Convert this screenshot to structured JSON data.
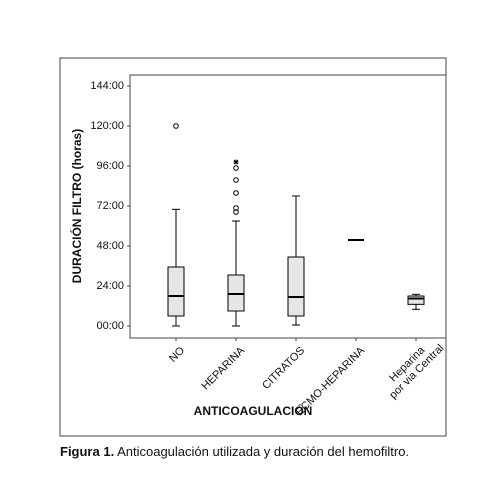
{
  "chart_data": {
    "type": "box",
    "title": null,
    "ylabel": "DURACIÓN FILTRO (horas)",
    "xlabel": "ANTICOAGULACIÓN",
    "caption_label": "Figura 1.",
    "caption_text": "Anticoagulación utilizada y duración del hemofiltro.",
    "categories": [
      "NO",
      "HEPARINA",
      "CITRATOS",
      "ECMO-HEPARINA",
      "Heparina por via Central"
    ],
    "boxes": [
      {
        "min": 0,
        "q1": 6,
        "median": 18,
        "q3": 35.4,
        "max": 70,
        "outliers": [
          120
        ],
        "extremes": []
      },
      {
        "min": 0,
        "q1": 9,
        "median": 19.2,
        "q3": 30.6,
        "max": 63,
        "outliers": [
          68.4,
          70.8,
          79.8,
          87.6,
          94.8
        ],
        "extremes": [
          98.4
        ]
      },
      {
        "min": 0.6,
        "q1": 6,
        "median": 17.4,
        "q3": 41.4,
        "max": 78,
        "outliers": [],
        "extremes": []
      },
      {
        "min": 51.6,
        "q1": 51.6,
        "median": 51.6,
        "q3": 51.6,
        "max": 51.6,
        "outliers": [],
        "extremes": []
      },
      {
        "min": 10,
        "q1": 13,
        "median": 16.5,
        "q3": 18,
        "max": 19,
        "outliers": [],
        "extremes": []
      }
    ],
    "color": "#e6e6e6",
    "ylim": [
      -7.2,
      150.6
    ],
    "yticks": [
      {
        "value": 0,
        "label": "00:00"
      },
      {
        "value": 24,
        "label": "24:00"
      },
      {
        "value": 48,
        "label": "48:00"
      },
      {
        "value": 72,
        "label": "72:00"
      },
      {
        "value": 96,
        "label": "96:00"
      },
      {
        "value": 120,
        "label": "120:00"
      },
      {
        "value": 144,
        "label": "144:00"
      }
    ],
    "grid": false
  }
}
